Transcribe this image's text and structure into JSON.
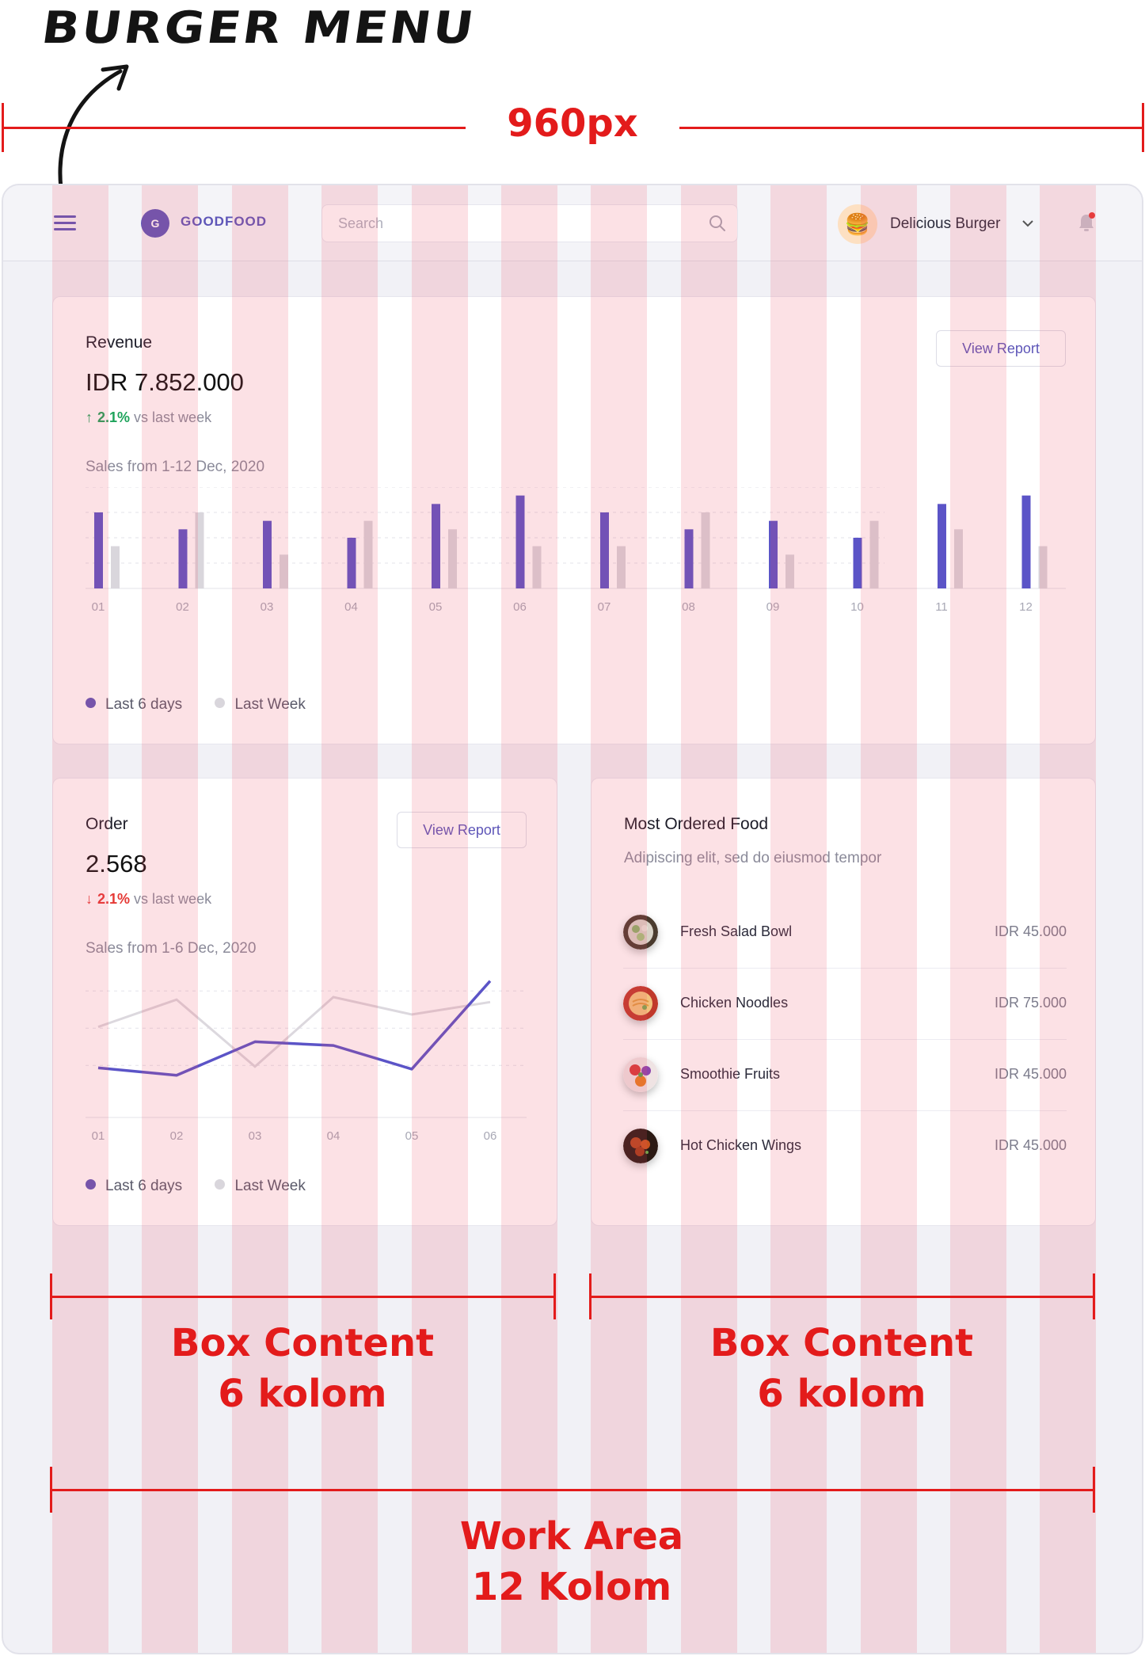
{
  "annotations": {
    "title": "BURGER MENU",
    "width_label": "960px",
    "box_left": [
      "Box Content",
      "6 kolom"
    ],
    "box_right": [
      "Box Content",
      "6 kolom"
    ],
    "work_area": [
      "Work Area",
      "12 Kolom"
    ]
  },
  "topbar": {
    "logo_letter": "G",
    "logo_text": "GOODFOOD",
    "search_placeholder": "Search",
    "avatar_emoji": "🍔",
    "user_name": "Delicious Burger"
  },
  "revenue": {
    "title": "Revenue",
    "value": "IDR 7.852.000",
    "trend_arrow": "↑",
    "trend_pct": "2.1%",
    "trend_text": "vs last week",
    "subtitle": "Sales from 1-12 Dec, 2020",
    "button": "View Report"
  },
  "order": {
    "title": "Order",
    "value": "2.568",
    "trend_arrow": "↓",
    "trend_pct": "2.1%",
    "trend_text": "vs last week",
    "subtitle": "Sales from 1-6 Dec, 2020",
    "button": "View Report"
  },
  "most_ordered": {
    "title": "Most Ordered Food",
    "subtitle": "Adipiscing elit, sed do eiusmod tempor",
    "items": [
      {
        "name": "Fresh Salad Bowl",
        "price": "IDR 45.000"
      },
      {
        "name": "Chicken Noodles",
        "price": "IDR 75.000"
      },
      {
        "name": "Smoothie Fruits",
        "price": "IDR 45.000"
      },
      {
        "name": "Hot Chicken Wings",
        "price": "IDR 45.000"
      }
    ]
  },
  "legend": {
    "current": "Last 6 days",
    "previous": "Last Week"
  },
  "colors": {
    "accent": "#5e56b8",
    "accent_bar": "#5b54c7",
    "previous_bar": "#d9d6dc",
    "up": "#1ea35b",
    "down": "#e53935",
    "annotation_red": "#e31b1b"
  },
  "chart_data": [
    {
      "type": "bar",
      "categories": [
        "01",
        "02",
        "03",
        "04",
        "05",
        "06",
        "07",
        "08",
        "09",
        "10",
        "11",
        "12"
      ],
      "series": [
        {
          "name": "Last 6 days",
          "values": [
            9,
            7,
            8,
            6,
            10,
            11,
            9,
            7,
            8,
            6,
            10,
            11
          ]
        },
        {
          "name": "Last Week",
          "values": [
            5,
            9,
            4,
            8,
            7,
            5,
            5,
            9,
            4,
            8,
            7,
            5
          ]
        }
      ],
      "ylim": [
        0,
        12
      ],
      "grid": true
    },
    {
      "type": "line",
      "categories": [
        "01",
        "02",
        "03",
        "04",
        "05",
        "06"
      ],
      "series": [
        {
          "name": "Last 6 days",
          "values": [
            4,
            3.4,
            6.1,
            5.8,
            3.9,
            11
          ]
        },
        {
          "name": "Last Week",
          "values": [
            7.3,
            9.5,
            4.1,
            9.7,
            8.3,
            9.3
          ]
        }
      ],
      "ylim": [
        0,
        12
      ],
      "grid": true
    }
  ]
}
